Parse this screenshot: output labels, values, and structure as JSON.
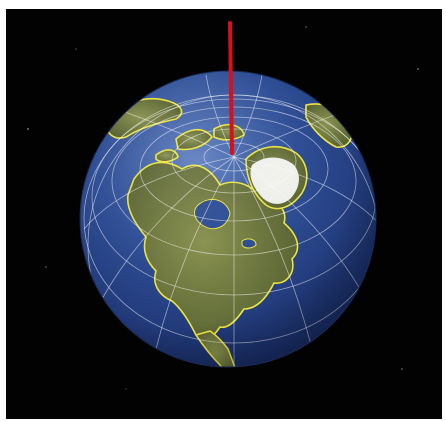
{
  "scene": {
    "subject": "globe",
    "view": "north-polar-oblique",
    "colors": {
      "space": "#020202",
      "ocean": "#223f86",
      "ocean_light": "#4f6fb2",
      "land": "#6e7d3f",
      "land_dark": "#4d5a2c",
      "coast": "#f0e640",
      "graticule": "#ffffff",
      "ice": "#ffffff",
      "axis": "#d7101a"
    },
    "elements": [
      "stars",
      "earth-globe",
      "graticule-grid",
      "coastlines",
      "greenland-ice",
      "rotation-axis"
    ]
  }
}
